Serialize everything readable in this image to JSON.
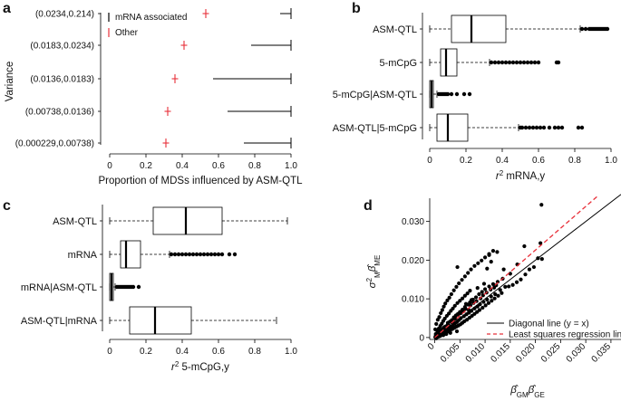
{
  "chart_data": [
    {
      "panel": "a",
      "type": "scatter",
      "ylabel": "Variance",
      "xlabel": "Proportion of MDSs influenced by ASM-QTL",
      "xlim": [
        0,
        1
      ],
      "xticks": [
        "0",
        "0.2",
        "0.4",
        "0.6",
        "0.8",
        "1.0"
      ],
      "categories": [
        "(0.0234,0.214)",
        "(0.0183,0.0234)",
        "(0.0136,0.0183)",
        "(0.00738,0.0136)",
        "(0.000229,0.00738)"
      ],
      "legend": {
        "placement": "top-left",
        "items": [
          "mRNA associated",
          "Other"
        ]
      },
      "series": [
        {
          "name": "mRNA associated",
          "color": "#000000",
          "ranges": [
            [
              0.94,
              1.0
            ],
            [
              0.78,
              1.0
            ],
            [
              0.57,
              1.0
            ],
            [
              0.65,
              1.0
            ],
            [
              0.74,
              1.0
            ]
          ]
        },
        {
          "name": "Other",
          "color": "#e8303a",
          "values": [
            0.53,
            0.41,
            0.36,
            0.32,
            0.31
          ]
        }
      ]
    },
    {
      "panel": "b",
      "type": "box",
      "xlabel": "r² mRNA,y",
      "xlabel_main": "r",
      "xlabel_sup": "2",
      "xlabel_rest": " mRNA,y",
      "xlim": [
        0,
        1
      ],
      "xticks": [
        "0",
        "0.2",
        "0.4",
        "0.6",
        "0.8",
        "1.0"
      ],
      "categories": [
        "ASM-QTL",
        "5-mCpG",
        "5-mCpG|ASM-QTL",
        "ASM-QTL|5-mCpG"
      ],
      "boxes": [
        {
          "min": 0.0,
          "q1": 0.12,
          "median": 0.23,
          "q3": 0.42,
          "max": 0.83,
          "outliers": [
            0.84,
            0.86,
            0.88,
            0.89,
            0.9,
            0.91,
            0.92,
            0.93,
            0.94,
            0.95,
            0.96,
            0.97,
            0.98
          ]
        },
        {
          "min": 0.0,
          "q1": 0.06,
          "median": 0.09,
          "q3": 0.15,
          "max": 0.33,
          "outliers": [
            0.34,
            0.36,
            0.38,
            0.4,
            0.42,
            0.44,
            0.46,
            0.48,
            0.5,
            0.52,
            0.54,
            0.56,
            0.58,
            0.6,
            0.7,
            0.71
          ]
        },
        {
          "min": 0.0,
          "q1": 0.0,
          "median": 0.01,
          "q3": 0.02,
          "max": 0.04,
          "outliers": [
            0.05,
            0.06,
            0.07,
            0.08,
            0.09,
            0.1,
            0.12,
            0.15,
            0.19,
            0.22
          ]
        },
        {
          "min": 0.0,
          "q1": 0.04,
          "median": 0.1,
          "q3": 0.21,
          "max": 0.49,
          "outliers": [
            0.5,
            0.51,
            0.53,
            0.55,
            0.57,
            0.59,
            0.61,
            0.63,
            0.66,
            0.69,
            0.71,
            0.73,
            0.82,
            0.84
          ]
        }
      ]
    },
    {
      "panel": "c",
      "type": "box",
      "xlabel": "r² 5-mCpG,y",
      "xlabel_main": "r",
      "xlabel_sup": "2",
      "xlabel_rest": " 5-mCpG,y",
      "xlim": [
        0,
        1
      ],
      "xticks": [
        "0",
        "0.2",
        "0.4",
        "0.6",
        "0.8",
        "1.0"
      ],
      "categories": [
        "ASM-QTL",
        "mRNA",
        "mRNA|ASM-QTL",
        "ASM-QTL|mRNA"
      ],
      "boxes": [
        {
          "min": 0.0,
          "q1": 0.24,
          "median": 0.42,
          "q3": 0.62,
          "max": 0.98,
          "outliers": []
        },
        {
          "min": 0.0,
          "q1": 0.06,
          "median": 0.09,
          "q3": 0.17,
          "max": 0.33,
          "outliers": [
            0.34,
            0.36,
            0.38,
            0.4,
            0.42,
            0.44,
            0.46,
            0.48,
            0.5,
            0.52,
            0.54,
            0.56,
            0.58,
            0.6,
            0.62,
            0.66,
            0.69
          ]
        },
        {
          "min": 0.0,
          "q1": 0.0,
          "median": 0.01,
          "q3": 0.02,
          "max": 0.03,
          "outliers": [
            0.04,
            0.05,
            0.06,
            0.07,
            0.08,
            0.09,
            0.1,
            0.11,
            0.12,
            0.13,
            0.16
          ]
        },
        {
          "min": 0.0,
          "q1": 0.11,
          "median": 0.25,
          "q3": 0.45,
          "max": 0.92,
          "outliers": []
        }
      ]
    },
    {
      "panel": "d",
      "type": "scatter",
      "xlabel": "β̂GM β̂GE",
      "xlabel_parts": [
        "β̂",
        "GM",
        "β̂",
        "GE"
      ],
      "ylabel": "σ²M β̂ME",
      "ylabel_parts": [
        "σ",
        "2",
        "M",
        "β̂",
        "ME"
      ],
      "xlim": [
        -0.001,
        0.037
      ],
      "ylim": [
        -0.0005,
        0.036
      ],
      "xticks": [
        "0",
        "0.005",
        "0.010",
        "0.015",
        "0.020",
        "0.025",
        "0.030",
        "0.035"
      ],
      "yticks": [
        "0",
        "0.010",
        "0.020",
        "0.030"
      ],
      "legend": {
        "placement": "bottom-right",
        "items": [
          "Diagonal line (y = x)",
          "Least squares regression line"
        ]
      },
      "lines": [
        {
          "name": "Diagonal line (y = x)",
          "slope": 1.0,
          "color": "#000000",
          "style": "solid"
        },
        {
          "name": "Least squares regression line",
          "slope": 1.13,
          "color": "#e8303a",
          "style": "dashed"
        }
      ],
      "points": [
        [
          0.0002,
          0.0003
        ],
        [
          0.0004,
          0.0001
        ],
        [
          0.0006,
          0.0009
        ],
        [
          0.0008,
          0.0005
        ],
        [
          0.001,
          0.0014
        ],
        [
          0.0012,
          0.0008
        ],
        [
          0.0014,
          0.0019
        ],
        [
          0.0016,
          0.0012
        ],
        [
          0.0018,
          0.0024
        ],
        [
          0.002,
          0.0015
        ],
        [
          0.0022,
          0.0029
        ],
        [
          0.0024,
          0.002
        ],
        [
          0.0026,
          0.0034
        ],
        [
          0.0028,
          0.0024
        ],
        [
          0.003,
          0.0041
        ],
        [
          0.0032,
          0.0027
        ],
        [
          0.0034,
          0.0045
        ],
        [
          0.0036,
          0.0031
        ],
        [
          0.0038,
          0.0052
        ],
        [
          0.004,
          0.0036
        ],
        [
          0.0042,
          0.0057
        ],
        [
          0.0044,
          0.004
        ],
        [
          0.0046,
          0.0061
        ],
        [
          0.0048,
          0.0045
        ],
        [
          0.005,
          0.0066
        ],
        [
          0.0052,
          0.005
        ],
        [
          0.0055,
          0.0072
        ],
        [
          0.0058,
          0.0055
        ],
        [
          0.006,
          0.0079
        ],
        [
          0.0063,
          0.006
        ],
        [
          0.0066,
          0.0085
        ],
        [
          0.0068,
          0.0064
        ],
        [
          0.007,
          0.0091
        ],
        [
          0.0073,
          0.0069
        ],
        [
          0.0076,
          0.0098
        ],
        [
          0.0079,
          0.0075
        ],
        [
          0.0082,
          0.0104
        ],
        [
          0.0085,
          0.008
        ],
        [
          0.0088,
          0.0112
        ],
        [
          0.009,
          0.0086
        ],
        [
          0.0094,
          0.0118
        ],
        [
          0.0097,
          0.0092
        ],
        [
          0.01,
          0.0125
        ],
        [
          0.0104,
          0.0098
        ],
        [
          0.0108,
          0.0132
        ],
        [
          0.0112,
          0.0106
        ],
        [
          0.0116,
          0.0138
        ],
        [
          0.012,
          0.0112
        ],
        [
          0.0125,
          0.0144
        ],
        [
          0.013,
          0.0123
        ],
        [
          0.0135,
          0.0152
        ],
        [
          0.014,
          0.0131
        ],
        [
          0.0001,
          0.0021
        ],
        [
          0.0003,
          0.0035
        ],
        [
          0.0006,
          0.0046
        ],
        [
          0.0009,
          0.0053
        ],
        [
          0.0012,
          0.0063
        ],
        [
          0.0015,
          0.0071
        ],
        [
          0.0018,
          0.008
        ],
        [
          0.0021,
          0.0088
        ],
        [
          0.0025,
          0.0096
        ],
        [
          0.0029,
          0.0103
        ],
        [
          0.0033,
          0.0112
        ],
        [
          0.0038,
          0.0122
        ],
        [
          0.0043,
          0.0131
        ],
        [
          0.0048,
          0.014
        ],
        [
          0.0054,
          0.0149
        ],
        [
          0.006,
          0.0158
        ],
        [
          0.0066,
          0.0167
        ],
        [
          0.0072,
          0.0176
        ],
        [
          0.0079,
          0.0185
        ],
        [
          0.0086,
          0.0192
        ],
        [
          0.0093,
          0.0199
        ],
        [
          0.01,
          0.0207
        ],
        [
          0.0108,
          0.0216
        ],
        [
          0.0116,
          0.0224
        ],
        [
          0.0002,
          0.0009
        ],
        [
          0.0005,
          0.0017
        ],
        [
          0.0008,
          0.0023
        ],
        [
          0.0011,
          0.003
        ],
        [
          0.0014,
          0.0036
        ],
        [
          0.0017,
          0.0043
        ],
        [
          0.002,
          0.0049
        ],
        [
          0.0024,
          0.0056
        ],
        [
          0.0028,
          0.0062
        ],
        [
          0.0032,
          0.0069
        ],
        [
          0.0036,
          0.0075
        ],
        [
          0.004,
          0.0082
        ],
        [
          0.0045,
          0.0089
        ],
        [
          0.005,
          0.0095
        ],
        [
          0.0055,
          0.0101
        ],
        [
          0.006,
          0.0108
        ],
        [
          0.0065,
          0.0114
        ],
        [
          0.007,
          0.0121
        ],
        [
          0.0003,
          -0.0002
        ],
        [
          0.0007,
          0.0002
        ],
        [
          0.0011,
          0.0004
        ],
        [
          0.0015,
          0.0007
        ],
        [
          0.0019,
          0.001
        ],
        [
          0.0023,
          0.0013
        ],
        [
          0.0027,
          0.0016
        ],
        [
          0.0031,
          0.0019
        ],
        [
          0.0035,
          0.0022
        ],
        [
          0.0039,
          0.0025
        ],
        [
          0.0043,
          0.0028
        ],
        [
          0.0047,
          0.0031
        ],
        [
          0.0051,
          0.0034
        ],
        [
          0.0055,
          0.0038
        ],
        [
          0.0059,
          0.0042
        ],
        [
          0.0064,
          0.0046
        ],
        [
          0.0069,
          0.0051
        ],
        [
          0.0074,
          0.0056
        ],
        [
          0.0079,
          0.0061
        ],
        [
          0.0084,
          0.0066
        ],
        [
          0.0089,
          0.0071
        ],
        [
          0.0095,
          0.0077
        ],
        [
          0.0101,
          0.0083
        ],
        [
          0.0107,
          0.0089
        ],
        [
          0.0113,
          0.0095
        ],
        [
          0.0119,
          0.0101
        ],
        [
          0.0126,
          0.0108
        ],
        [
          0.0133,
          0.0115
        ],
        [
          0.0147,
          0.0132
        ],
        [
          0.0155,
          0.0136
        ],
        [
          0.0163,
          0.0143
        ],
        [
          0.0171,
          0.015
        ],
        [
          0.018,
          0.0163
        ],
        [
          0.0188,
          0.0176
        ],
        [
          0.0197,
          0.0182
        ],
        [
          0.0205,
          0.0205
        ],
        [
          0.0213,
          0.0203
        ],
        [
          0.0178,
          0.0236
        ],
        [
          0.021,
          0.0244
        ],
        [
          0.0164,
          0.0189
        ],
        [
          0.0137,
          0.0176
        ],
        [
          0.015,
          0.0165
        ],
        [
          0.0098,
          0.0139
        ],
        [
          0.0085,
          0.0128
        ],
        [
          0.0073,
          0.0097
        ],
        [
          0.0062,
          0.0087
        ],
        [
          0.0104,
          0.0178
        ],
        [
          0.0112,
          0.0196
        ],
        [
          0.0108,
          0.0213
        ],
        [
          0.0124,
          0.0221
        ],
        [
          0.0045,
          0.0182
        ],
        [
          0.0212,
          0.0343
        ],
        [
          0.0001,
          0.0001
        ],
        [
          0.0002,
          0.0004
        ],
        [
          0.0004,
          0.0006
        ],
        [
          0.0005,
          0.0002
        ],
        [
          0.0007,
          0.0007
        ],
        [
          0.0009,
          0.0011
        ],
        [
          0.001,
          0.0004
        ],
        [
          0.0013,
          0.0016
        ],
        [
          0.0015,
          0.0022
        ],
        [
          0.0017,
          0.0006
        ],
        [
          0.0019,
          0.0027
        ],
        [
          0.0021,
          0.0018
        ],
        [
          0.0023,
          0.0009
        ],
        [
          0.0026,
          0.0038
        ],
        [
          0.0029,
          0.003
        ],
        [
          0.0031,
          0.0012
        ],
        [
          0.0034,
          0.0039
        ],
        [
          0.0037,
          0.0044
        ],
        [
          0.0041,
          0.0049
        ],
        [
          0.0044,
          0.0016
        ],
        [
          0.0047,
          0.0059
        ],
        [
          0.0052,
          0.0063
        ],
        [
          0.0057,
          0.0068
        ],
        [
          0.0061,
          0.0074
        ],
        [
          0.0067,
          0.0072
        ],
        [
          0.0071,
          0.0083
        ],
        [
          0.0077,
          0.0089
        ],
        [
          0.0083,
          0.0094
        ],
        [
          0.0091,
          0.0101
        ],
        [
          0.0096,
          0.0109
        ],
        [
          0.0103,
          0.0116
        ],
        [
          0.0111,
          0.0124
        ],
        [
          0.0118,
          0.0129
        ],
        [
          0.0122,
          0.0135
        ]
      ]
    }
  ]
}
